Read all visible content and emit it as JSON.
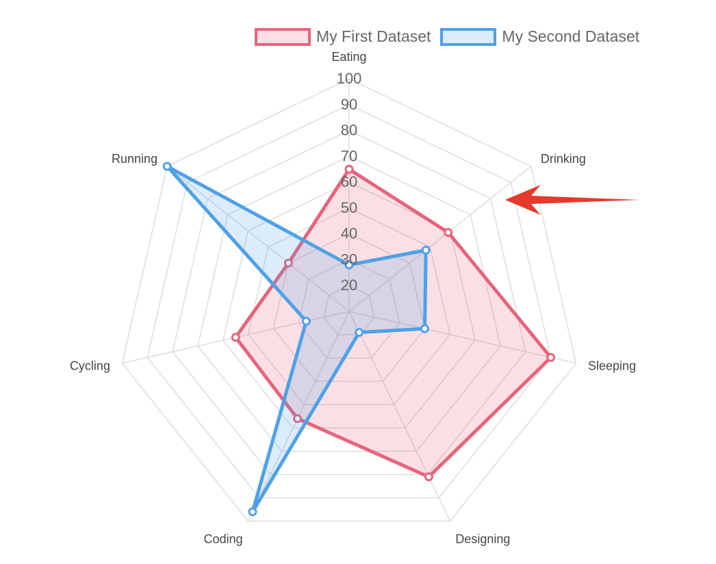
{
  "chart_data": {
    "type": "radar",
    "categories": [
      "Eating",
      "Drinking",
      "Sleeping",
      "Designing",
      "Coding",
      "Cycling",
      "Running"
    ],
    "series": [
      {
        "name": "My First Dataset",
        "values": [
          65,
          59,
          90,
          81,
          56,
          55,
          40
        ],
        "border": "#e8637b",
        "fill": "rgba(232,99,123,0.2)"
      },
      {
        "name": "My Second Dataset",
        "values": [
          28,
          48,
          40,
          19,
          96,
          27,
          100
        ],
        "border": "#4ea1e7",
        "fill": "rgba(78,161,231,0.2)"
      }
    ],
    "r_ticks": [
      "20",
      "30",
      "40",
      "50",
      "60",
      "70",
      "80",
      "90",
      "100"
    ],
    "r_range": [
      10,
      100
    ],
    "grid": true,
    "legend_position": "top",
    "annotation": {
      "type": "arrow",
      "color": "#e53a2c"
    }
  }
}
